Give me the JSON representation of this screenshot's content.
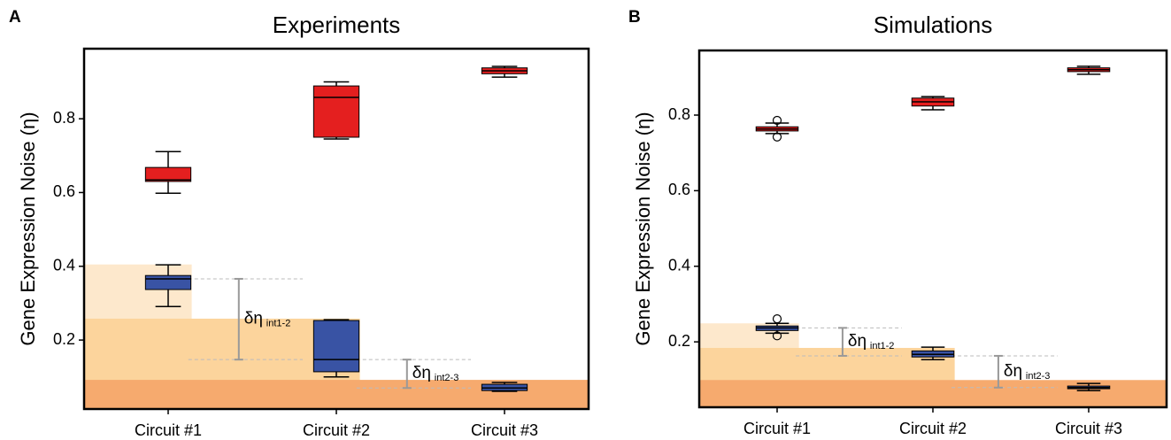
{
  "chart_data": [
    {
      "type": "box",
      "panel": "A",
      "title": "Experiments",
      "ylabel": "Gene Expression Noise (η)",
      "categories": [
        "Circuit #1",
        "Circuit #2",
        "Circuit #3"
      ],
      "ylim": [
        0.013,
        0.99
      ],
      "yticks": [
        0.2,
        0.4,
        0.6,
        0.8
      ],
      "series": [
        {
          "color": "#e41f1f",
          "boxes": [
            {
              "whislo": 0.598,
              "q1": 0.63,
              "med": 0.634,
              "q3": 0.668,
              "whishi": 0.711,
              "fliers": []
            },
            {
              "whislo": 0.745,
              "q1": 0.75,
              "med": 0.858,
              "q3": 0.889,
              "whishi": 0.9,
              "fliers": []
            },
            {
              "whislo": 0.913,
              "q1": 0.922,
              "med": 0.93,
              "q3": 0.938,
              "whishi": 0.942,
              "fliers": []
            }
          ]
        },
        {
          "color": "#3953a4",
          "boxes": [
            {
              "whislo": 0.291,
              "q1": 0.337,
              "med": 0.366,
              "q3": 0.375,
              "whishi": 0.404,
              "fliers": []
            },
            {
              "whislo": 0.1,
              "q1": 0.114,
              "med": 0.147,
              "q3": 0.253,
              "whishi": 0.255,
              "fliers": []
            },
            {
              "whislo": 0.061,
              "q1": 0.063,
              "med": 0.07,
              "q3": 0.08,
              "whishi": 0.085,
              "fliers": []
            }
          ]
        }
      ],
      "bands": [
        {
          "top": 0.405,
          "color": "#fde8cc"
        },
        {
          "top": 0.258,
          "color": "#fcd49c"
        },
        {
          "top": 0.092,
          "color": "#f6aa6e"
        }
      ],
      "annotations": [
        {
          "text": "δη",
          "sub": "int1-2",
          "from": 0.366,
          "to": 0.147
        },
        {
          "text": "δη",
          "sub": "int2-3",
          "from": 0.147,
          "to": 0.07
        }
      ]
    },
    {
      "type": "box",
      "panel": "B",
      "title": "Simulations",
      "ylabel": "Gene Expression Noise (η)",
      "categories": [
        "Circuit #1",
        "Circuit #2",
        "Circuit #3"
      ],
      "ylim": [
        0.027,
        0.971
      ],
      "yticks": [
        0.2,
        0.4,
        0.6,
        0.8
      ],
      "series": [
        {
          "color": "#e41f1f",
          "boxes": [
            {
              "whislo": 0.751,
              "q1": 0.758,
              "med": 0.763,
              "q3": 0.769,
              "whishi": 0.779,
              "fliers": [
                0.786,
                0.742
              ]
            },
            {
              "whislo": 0.814,
              "q1": 0.824,
              "med": 0.835,
              "q3": 0.845,
              "whishi": 0.849,
              "fliers": []
            },
            {
              "whislo": 0.908,
              "q1": 0.915,
              "med": 0.92,
              "q3": 0.925,
              "whishi": 0.929,
              "fliers": []
            }
          ]
        },
        {
          "color": "#3953a4",
          "boxes": [
            {
              "whislo": 0.223,
              "q1": 0.23,
              "med": 0.237,
              "q3": 0.242,
              "whishi": 0.249,
              "fliers": [
                0.261,
                0.216
              ]
            },
            {
              "whislo": 0.153,
              "q1": 0.16,
              "med": 0.167,
              "q3": 0.176,
              "whishi": 0.186,
              "fliers": []
            },
            {
              "whislo": 0.071,
              "q1": 0.076,
              "med": 0.079,
              "q3": 0.083,
              "whishi": 0.09,
              "fliers": []
            }
          ]
        }
      ],
      "bands": [
        {
          "top": 0.249,
          "color": "#fde8cc"
        },
        {
          "top": 0.184,
          "color": "#fcd49c"
        },
        {
          "top": 0.099,
          "color": "#f6aa6e"
        }
      ],
      "annotations": [
        {
          "text": "δη",
          "sub": "int1-2",
          "from": 0.237,
          "to": 0.163
        },
        {
          "text": "δη",
          "sub": "int2-3",
          "from": 0.163,
          "to": 0.079
        }
      ]
    }
  ]
}
